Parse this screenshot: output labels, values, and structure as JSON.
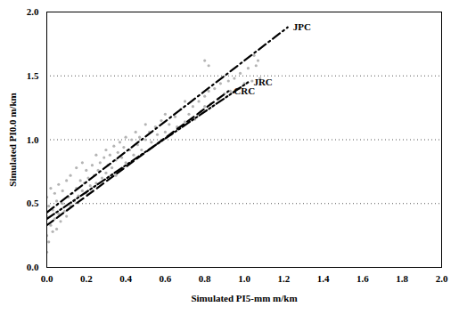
{
  "chart_data": {
    "type": "scatter",
    "xlabel": "Simulated PI5-mm m/km",
    "ylabel": "Simulated PI0.0 m/km",
    "xlim": [
      0,
      2.0
    ],
    "ylim": [
      0,
      2.0
    ],
    "xticks": [
      {
        "value": 0,
        "label": "0.0"
      },
      {
        "value": 0.2,
        "label": "0.2"
      },
      {
        "value": 0.4,
        "label": "0.4"
      },
      {
        "value": 0.6,
        "label": "0.6"
      },
      {
        "value": 0.8,
        "label": "0.8"
      },
      {
        "value": 1.0,
        "label": "1.0"
      },
      {
        "value": 1.2,
        "label": "1.2"
      },
      {
        "value": 1.4,
        "label": "1.4"
      },
      {
        "value": 1.6,
        "label": "1.6"
      },
      {
        "value": 1.8,
        "label": "1.8"
      },
      {
        "value": 2.0,
        "label": "2.0"
      }
    ],
    "yticks": [
      {
        "value": 0,
        "label": "0.0"
      },
      {
        "value": 0.5,
        "label": "0.5"
      },
      {
        "value": 1.0,
        "label": "1.0"
      },
      {
        "value": 1.5,
        "label": "1.5"
      },
      {
        "value": 2.0,
        "label": "2.0"
      }
    ],
    "grid": true,
    "series": [
      {
        "type": "scatter",
        "color": "#b4b4b4",
        "marker": "circle",
        "x": [
          0.0,
          0.0,
          0.0,
          0.0,
          0.01,
          0.01,
          0.02,
          0.02,
          0.03,
          0.03,
          0.04,
          0.04,
          0.05,
          0.05,
          0.06,
          0.06,
          0.07,
          0.08,
          0.08,
          0.09,
          0.1,
          0.1,
          0.11,
          0.12,
          0.12,
          0.13,
          0.14,
          0.15,
          0.15,
          0.16,
          0.17,
          0.18,
          0.18,
          0.19,
          0.2,
          0.2,
          0.21,
          0.22,
          0.23,
          0.24,
          0.25,
          0.25,
          0.26,
          0.27,
          0.28,
          0.29,
          0.3,
          0.3,
          0.31,
          0.32,
          0.33,
          0.34,
          0.35,
          0.35,
          0.36,
          0.37,
          0.38,
          0.39,
          0.4,
          0.4,
          0.42,
          0.43,
          0.44,
          0.45,
          0.46,
          0.47,
          0.48,
          0.5,
          0.5,
          0.52,
          0.53,
          0.55,
          0.56,
          0.58,
          0.6,
          0.6,
          0.62,
          0.63,
          0.65,
          0.66,
          0.68,
          0.7,
          0.7,
          0.72,
          0.74,
          0.75,
          0.77,
          0.78,
          0.8,
          0.8,
          0.82,
          0.83,
          0.85,
          0.87,
          0.88,
          0.9,
          0.92,
          0.93,
          0.95,
          0.97,
          0.98,
          1.0,
          1.02,
          1.04,
          1.06,
          1.08,
          0.8,
          0.82,
          1.05,
          1.07
        ],
        "values": [
          0.12,
          0.25,
          0.4,
          0.55,
          0.2,
          0.48,
          0.33,
          0.62,
          0.28,
          0.45,
          0.38,
          0.58,
          0.3,
          0.52,
          0.42,
          0.65,
          0.36,
          0.5,
          0.6,
          0.44,
          0.4,
          0.68,
          0.55,
          0.48,
          0.72,
          0.58,
          0.52,
          0.62,
          0.78,
          0.56,
          0.68,
          0.6,
          0.82,
          0.66,
          0.58,
          0.76,
          0.7,
          0.64,
          0.8,
          0.72,
          0.66,
          0.88,
          0.76,
          0.82,
          0.7,
          0.86,
          0.74,
          0.92,
          0.8,
          0.88,
          0.78,
          0.95,
          0.84,
          0.72,
          0.9,
          0.98,
          0.86,
          0.94,
          0.82,
          1.02,
          0.92,
          1.0,
          0.88,
          1.06,
          0.96,
          1.02,
          0.92,
          1.0,
          1.12,
          1.06,
          0.98,
          1.1,
          1.04,
          1.15,
          1.06,
          1.2,
          1.12,
          1.04,
          1.18,
          1.1,
          1.24,
          1.14,
          1.3,
          1.2,
          1.26,
          1.16,
          1.3,
          1.22,
          1.34,
          1.26,
          1.38,
          1.28,
          1.4,
          1.32,
          1.44,
          1.36,
          1.46,
          1.38,
          1.48,
          1.4,
          1.52,
          1.44,
          1.56,
          1.46,
          1.58,
          1.48,
          1.62,
          1.58,
          1.66,
          1.62
        ]
      },
      {
        "name": "JPC",
        "type": "line",
        "color": "#000000",
        "line_style": "dashdot",
        "x": [
          0,
          1.22
        ],
        "values": [
          0.43,
          1.88
        ]
      },
      {
        "name": "JRC",
        "type": "line",
        "color": "#000000",
        "line_style": "dashdotdot",
        "x": [
          0,
          1.02
        ],
        "values": [
          0.38,
          1.45
        ]
      },
      {
        "name": "CRC",
        "type": "line",
        "color": "#000000",
        "line_style": "dashed",
        "x": [
          0,
          0.92
        ],
        "values": [
          0.33,
          1.38
        ]
      }
    ]
  }
}
